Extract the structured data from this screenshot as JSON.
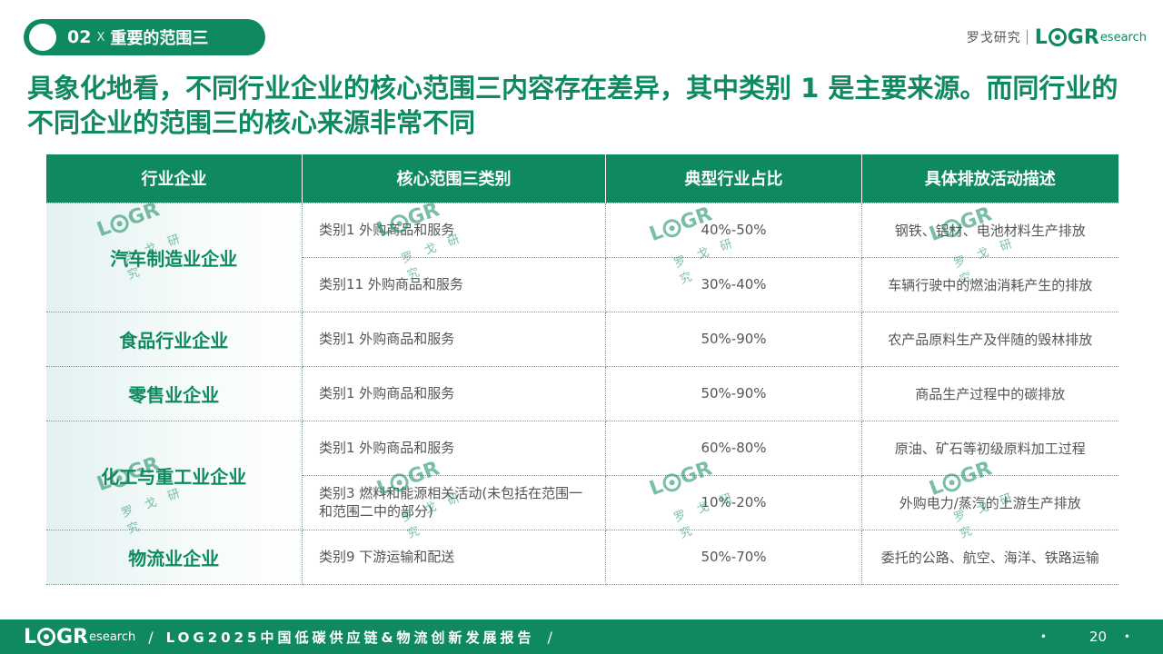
{
  "section": {
    "number": "02",
    "separator": "X",
    "title": "重要的范围三"
  },
  "brand": {
    "name_cn": "罗戈研究",
    "logo_letters": [
      "L",
      "G",
      "R"
    ],
    "logo_suffix": "esearch"
  },
  "headline": "具象化地看，不同行业企业的核心范围三内容存在差异，其中类别 1 是主要来源。而同行业的不同企业的范围三的核心来源非常不同",
  "table": {
    "headers": [
      "行业企业",
      "核心范围三类别",
      "典型行业占比",
      "具体排放活动描述"
    ],
    "groups": [
      {
        "industry": "汽车制造业企业",
        "rows": [
          {
            "category": "类别1 外购商品和服务",
            "share": "40%-50%",
            "activity": "钢铁、铝材、电池材料生产排放"
          },
          {
            "category": "类别11 外购商品和服务",
            "share": "30%-40%",
            "activity": "车辆行驶中的燃油消耗产生的排放"
          }
        ]
      },
      {
        "industry": "食品行业企业",
        "rows": [
          {
            "category": "类别1 外购商品和服务",
            "share": "50%-90%",
            "activity": "农产品原料生产及伴随的毁林排放"
          }
        ]
      },
      {
        "industry": "零售业企业",
        "rows": [
          {
            "category": "类别1 外购商品和服务",
            "share": "50%-90%",
            "activity": "商品生产过程中的碳排放"
          }
        ]
      },
      {
        "industry": "化工与重工业企业",
        "rows": [
          {
            "category": "类别1 外购商品和服务",
            "share": "60%-80%",
            "activity": "原油、矿石等初级原料加工过程"
          },
          {
            "category": "类别3 燃料和能源相关活动(未包括在范围一和范围二中的部分)",
            "share": "10%-20%",
            "activity": "外购电力/蒸汽的上游生产排放"
          }
        ]
      },
      {
        "industry": "物流业企业",
        "rows": [
          {
            "category": "类别9 下游运输和配送",
            "share": "50%-70%",
            "activity": "委托的公路、航空、海洋、铁路运输"
          }
        ]
      }
    ]
  },
  "watermark": {
    "letters": [
      "L",
      "G",
      "R"
    ],
    "suffix": "esearch",
    "cn": "罗戈研究"
  },
  "footer": {
    "logo_letters": [
      "L",
      "G",
      "R"
    ],
    "logo_suffix": "esearch",
    "slash": "/",
    "report_title": "LOG2025中国低碳供应链&物流创新发展报告",
    "page_number": "20",
    "dot": "•"
  }
}
